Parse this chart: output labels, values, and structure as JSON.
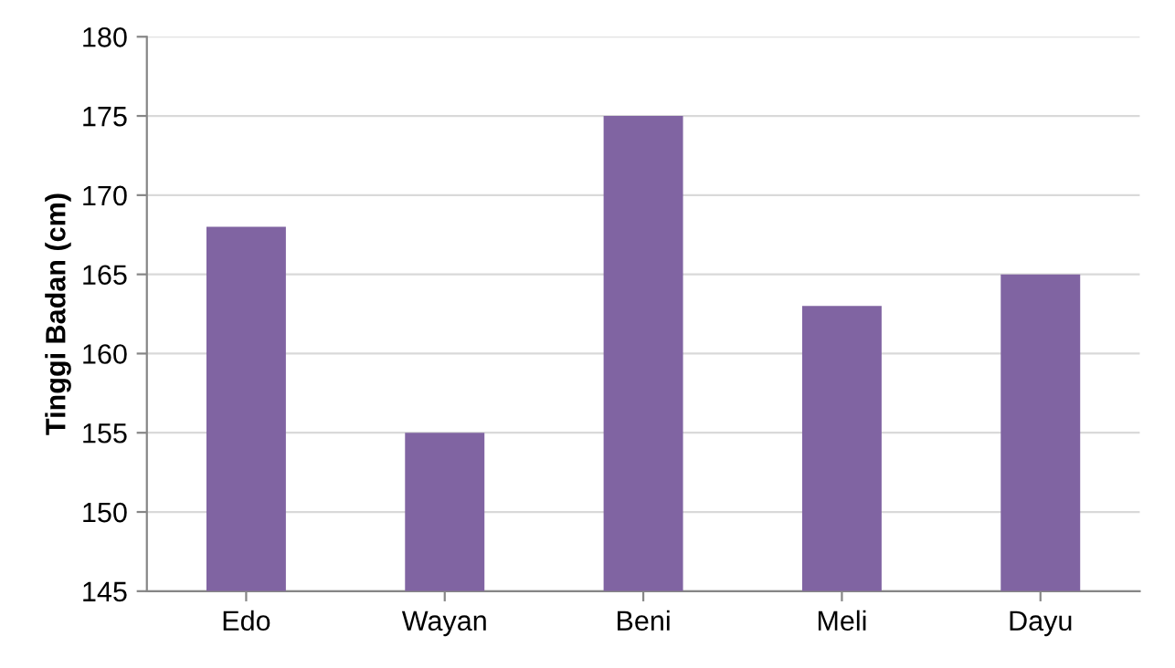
{
  "chart_data": {
    "type": "bar",
    "ylabel": "Tinggi Badan (cm)",
    "categories": [
      "Edo",
      "Wayan",
      "Beni",
      "Meli",
      "Dayu"
    ],
    "values": [
      168,
      155,
      175,
      163,
      165
    ],
    "color": "#8064a2",
    "ylim": [
      145,
      180
    ],
    "yticks": [
      145,
      150,
      155,
      160,
      165,
      170,
      175,
      180
    ],
    "grid": "y"
  }
}
